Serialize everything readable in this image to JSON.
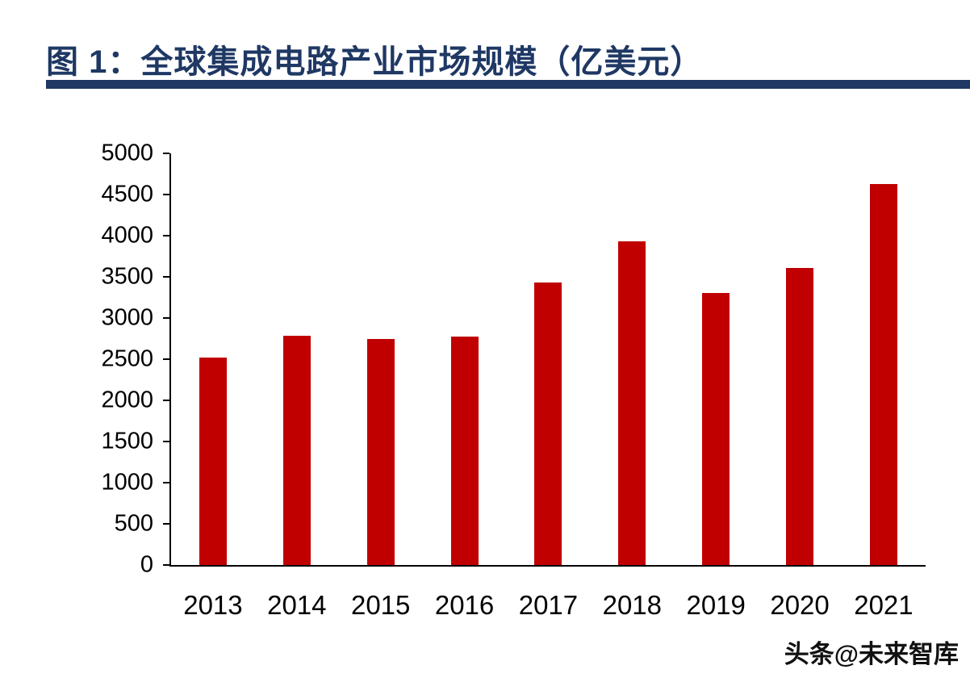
{
  "header": {
    "title": "图 1：全球集成电路产业市场规模（亿美元）"
  },
  "watermark": {
    "text": "头条@未来智库"
  },
  "colors": {
    "bar": "#c00000",
    "title": "#1f3864",
    "title_rule": "#1f3864",
    "axis": "#000000"
  },
  "chart_data": {
    "type": "bar",
    "title": "图 1：全球集成电路产业市场规模（亿美元）",
    "unit": "亿美元",
    "categories": [
      "2013",
      "2014",
      "2015",
      "2016",
      "2017",
      "2018",
      "2019",
      "2020",
      "2021"
    ],
    "values": [
      2520,
      2780,
      2750,
      2770,
      3430,
      3930,
      3300,
      3610,
      4630
    ],
    "xlabel": "",
    "ylabel": "",
    "ylim": [
      0,
      5000
    ],
    "ytick_step": 500,
    "grid": false,
    "legend": "none"
  }
}
